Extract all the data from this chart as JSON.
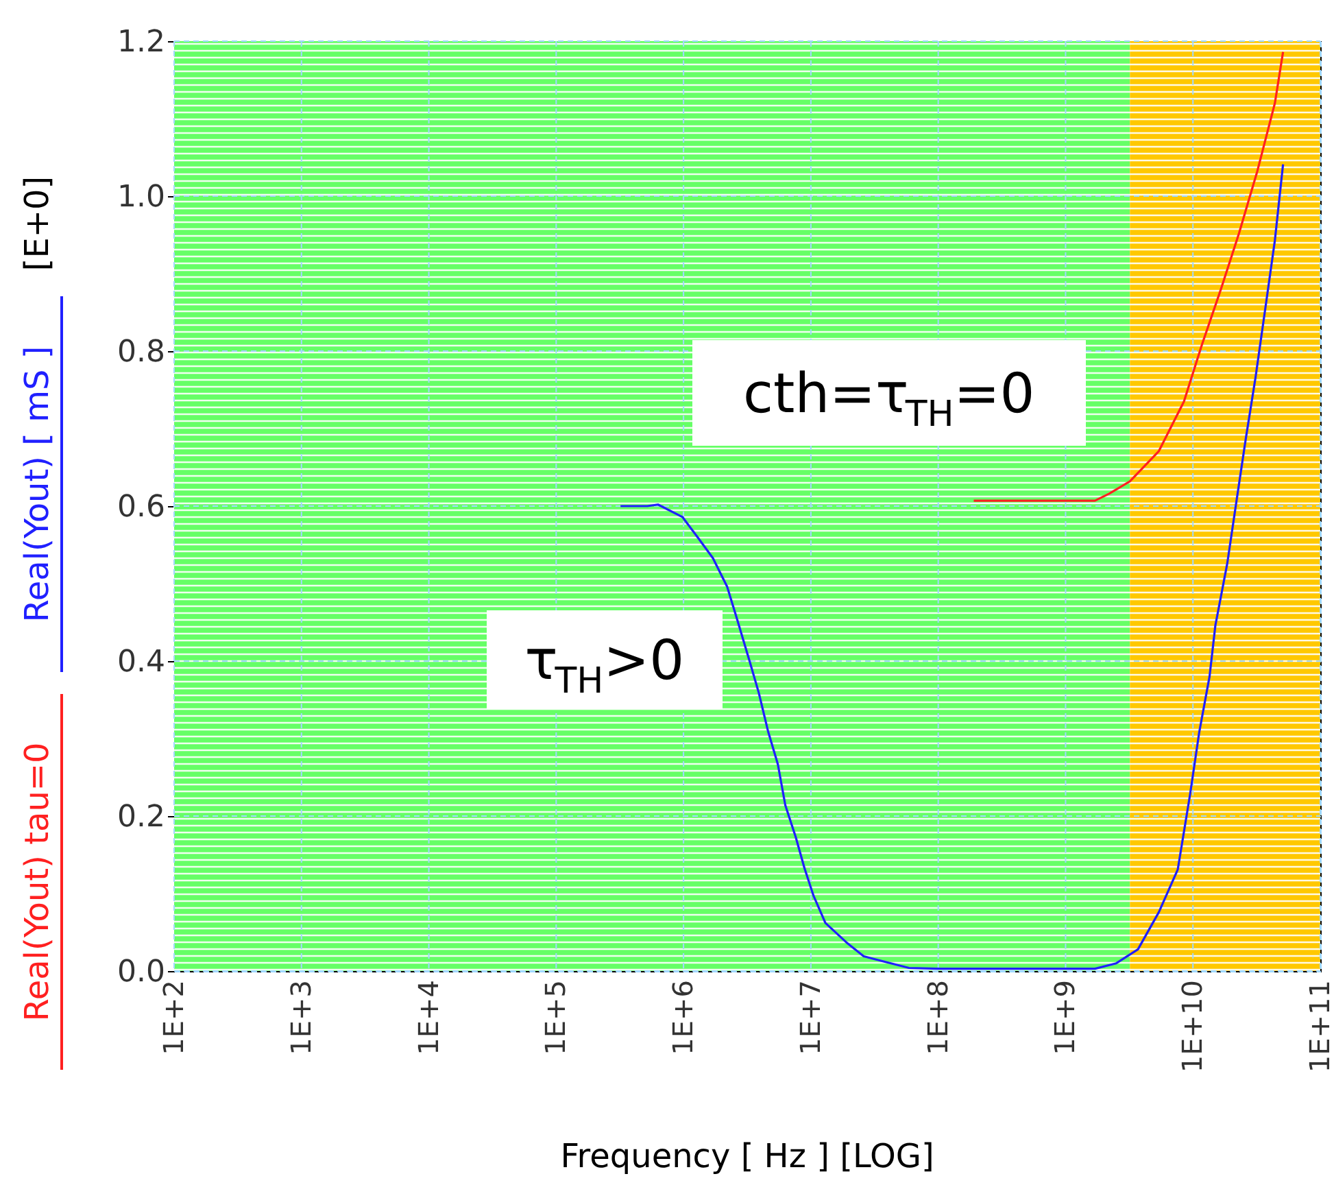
{
  "chart_data": {
    "type": "line",
    "xlabel": "Frequency [ Hz ]  [LOG]",
    "ylabel": "[E+0]",
    "log": "x",
    "xlim": [
      100,
      100000000000
    ],
    "ylim": [
      0,
      1.2
    ],
    "xticks": [
      {
        "value": 100,
        "label": "1E+2"
      },
      {
        "value": 1000,
        "label": "1E+3"
      },
      {
        "value": 10000,
        "label": "1E+4"
      },
      {
        "value": 100000,
        "label": "1E+5"
      },
      {
        "value": 1000000,
        "label": "1E+6"
      },
      {
        "value": 10000000,
        "label": "1E+7"
      },
      {
        "value": 100000000,
        "label": "1E+8"
      },
      {
        "value": 1000000000,
        "label": "1E+9"
      },
      {
        "value": 10000000000,
        "label": "1E+10"
      },
      {
        "value": 100000000000,
        "label": "1E+11"
      }
    ],
    "yticks": [
      {
        "value": 0,
        "label": "0.0"
      },
      {
        "value": 0.2,
        "label": "0.2"
      },
      {
        "value": 0.4,
        "label": "0.4"
      },
      {
        "value": 0.6,
        "label": "0.6"
      },
      {
        "value": 0.8,
        "label": "0.8"
      },
      {
        "value": 1.0,
        "label": "1.0"
      },
      {
        "value": 1.2,
        "label": "1.2"
      }
    ],
    "grid": true,
    "marker": "none",
    "line_style": "solid",
    "bands": [
      {
        "axis": "x",
        "from": 100,
        "to": 3200000000,
        "color": "#66ff66"
      },
      {
        "axis": "x",
        "from": 3200000000,
        "to": 100000000000,
        "color": "#ffc800"
      }
    ],
    "series": [
      {
        "name": "Real(Yout) tau=0",
        "color": "#ff2020",
        "x": [
          190000000,
          1700000000,
          2200000000,
          3200000000,
          5400000000,
          8500000000,
          11700000000,
          16600000000,
          23000000000,
          32000000000,
          44000000000,
          51000000000
        ],
        "values": [
          0.607,
          0.607,
          0.616,
          0.632,
          0.671,
          0.735,
          0.807,
          0.88,
          0.952,
          1.032,
          1.12,
          1.186
        ]
      },
      {
        "name": "Real(Yout) [ mS ]",
        "color": "#2020ff",
        "x": [
          320000,
          520000,
          630000,
          980000,
          1300000,
          1700000,
          2200000,
          2600000,
          3300000,
          3900000,
          4600000,
          5500000,
          6300000,
          7600000,
          8900000,
          10500000,
          13000000,
          19000000,
          26000000,
          40000000,
          59000000,
          100000000,
          1700000000,
          2500000000,
          3700000000,
          5400000000,
          7600000000,
          9500000000,
          11200000000,
          13500000000,
          15000000000,
          18600000000,
          22000000000,
          26000000000,
          31000000000,
          37000000000,
          44000000000,
          51000000000
        ],
        "values": [
          0.6,
          0.6,
          0.602,
          0.586,
          0.559,
          0.533,
          0.496,
          0.457,
          0.4,
          0.359,
          0.31,
          0.267,
          0.214,
          0.173,
          0.133,
          0.097,
          0.062,
          0.037,
          0.019,
          0.011,
          0.004,
          0.003,
          0.003,
          0.01,
          0.028,
          0.076,
          0.131,
          0.228,
          0.308,
          0.38,
          0.446,
          0.526,
          0.607,
          0.687,
          0.766,
          0.855,
          0.943,
          1.041
        ]
      }
    ],
    "annotations": [
      "cth=τ$_{TH}$=0",
      "τ$_{TH}$>0"
    ]
  }
}
